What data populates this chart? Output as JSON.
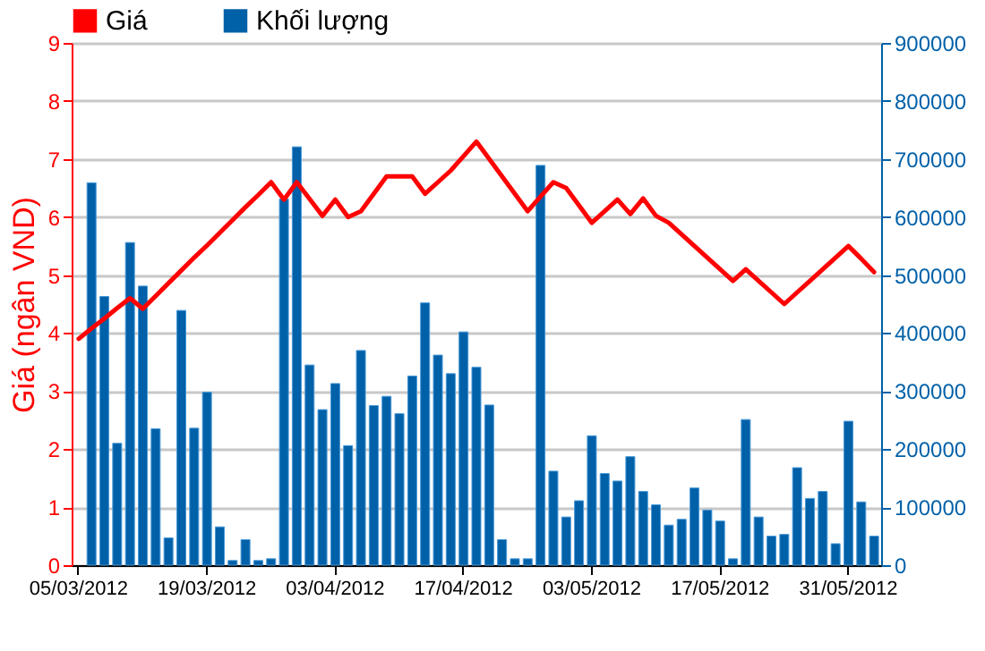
{
  "chart_data": {
    "type": "bar",
    "ylabel": "Giá (ngân VND)",
    "categories": [
      "05/03/2012",
      null,
      null,
      null,
      null,
      null,
      null,
      null,
      null,
      null,
      "19/03/2012",
      null,
      null,
      null,
      null,
      null,
      null,
      null,
      null,
      null,
      "03/04/2012",
      null,
      null,
      null,
      null,
      null,
      null,
      null,
      null,
      null,
      "17/04/2012",
      null,
      null,
      null,
      null,
      null,
      null,
      null,
      null,
      null,
      "03/05/2012",
      null,
      null,
      null,
      null,
      null,
      null,
      null,
      null,
      null,
      "17/05/2012",
      null,
      null,
      null,
      null,
      null,
      null,
      null,
      null,
      null,
      "31/05/2012",
      null,
      null
    ],
    "series": [
      {
        "name": "Giá",
        "type": "line",
        "axis": "y",
        "color": "#ff0000",
        "values": [
          3.9,
          4.08,
          4.25,
          4.43,
          4.6,
          4.42,
          4.64,
          4.86,
          5.08,
          5.3,
          5.51,
          5.73,
          5.95,
          6.17,
          6.38,
          6.6,
          6.3,
          6.6,
          6.31,
          6.02,
          6.3,
          6.0,
          6.1,
          6.4,
          6.7,
          6.7,
          6.7,
          6.4,
          6.6,
          6.8,
          7.05,
          7.3,
          7.0,
          6.7,
          6.4,
          6.1,
          6.35,
          6.6,
          6.5,
          6.2,
          5.9,
          6.1,
          6.3,
          6.05,
          6.32,
          6.02,
          5.9,
          5.7,
          5.5,
          5.3,
          5.1,
          4.9,
          5.1,
          4.9,
          4.7,
          4.5,
          4.7,
          4.9,
          5.1,
          5.3,
          5.5,
          5.28,
          5.05
        ]
      },
      {
        "name": "Khối lượng",
        "type": "bar",
        "axis": "y2",
        "color": "#0060a8",
        "values": [
          null,
          659000,
          463000,
          210000,
          556000,
          481000,
          235000,
          47000,
          439000,
          236000,
          298000,
          66000,
          8000,
          44000,
          8000,
          11000,
          631000,
          721000,
          345000,
          268000,
          313000,
          206000,
          370000,
          275000,
          291000,
          261000,
          326000,
          452000,
          362000,
          330000,
          402000,
          341000,
          276000,
          44000,
          11000,
          11000,
          689000,
          162000,
          83000,
          111000,
          223000,
          158000,
          145000,
          187000,
          127000,
          104000,
          69000,
          79000,
          133000,
          95000,
          76000,
          11000,
          251000,
          83000,
          50000,
          53000,
          168000,
          115000,
          127000,
          37000,
          248000,
          109000,
          50000
        ]
      }
    ],
    "ylim": [
      0,
      9
    ],
    "yticks": [
      0,
      1,
      2,
      3,
      4,
      5,
      6,
      7,
      8,
      9
    ],
    "y2lim": [
      0,
      900000
    ],
    "y2ticks": [
      0,
      100000,
      200000,
      300000,
      400000,
      500000,
      600000,
      700000,
      800000,
      900000
    ],
    "grid": "y",
    "legend": "top left"
  }
}
